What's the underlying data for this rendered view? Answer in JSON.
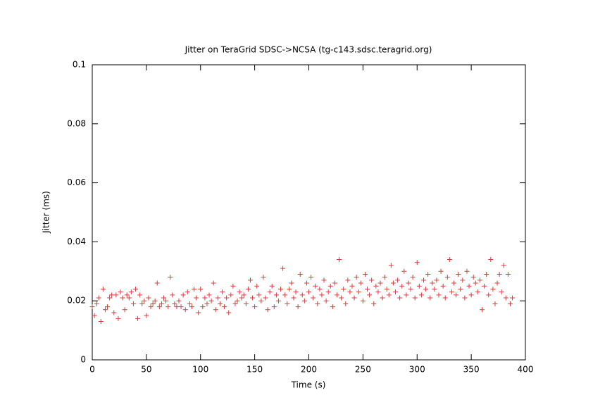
{
  "chart_data": {
    "type": "scatter",
    "title": "Jitter on TeraGrid SDSC->NCSA (tg-c143.sdsc.teragrid.org)",
    "xlabel": "Time (s)",
    "ylabel": "Jitter (ms)",
    "xlim": [
      0,
      400
    ],
    "xticks": [
      0,
      50,
      100,
      150,
      200,
      250,
      300,
      350,
      400
    ],
    "ylim": [
      0,
      0.1
    ],
    "yticks": [
      0,
      0.02,
      0.04,
      0.06,
      0.08,
      0.1
    ],
    "color": "#d83c3c",
    "x": [
      0,
      2,
      4,
      6,
      8,
      10,
      12,
      14,
      16,
      18,
      20,
      22,
      24,
      26,
      28,
      30,
      32,
      34,
      36,
      38,
      40,
      42,
      44,
      46,
      48,
      50,
      52,
      54,
      56,
      58,
      60,
      62,
      64,
      66,
      68,
      70,
      72,
      74,
      76,
      78,
      80,
      82,
      84,
      86,
      88,
      90,
      92,
      94,
      96,
      98,
      100,
      102,
      104,
      106,
      108,
      110,
      112,
      114,
      116,
      118,
      120,
      122,
      124,
      126,
      128,
      130,
      132,
      134,
      136,
      138,
      140,
      142,
      144,
      146,
      148,
      150,
      152,
      154,
      156,
      158,
      160,
      162,
      164,
      166,
      168,
      170,
      172,
      174,
      176,
      178,
      180,
      182,
      184,
      186,
      188,
      190,
      192,
      194,
      196,
      198,
      200,
      202,
      204,
      206,
      208,
      210,
      212,
      214,
      216,
      218,
      220,
      222,
      224,
      226,
      228,
      230,
      232,
      234,
      236,
      238,
      240,
      242,
      244,
      246,
      248,
      250,
      252,
      254,
      256,
      258,
      260,
      262,
      264,
      266,
      268,
      270,
      272,
      274,
      276,
      278,
      280,
      282,
      284,
      286,
      288,
      290,
      292,
      294,
      296,
      298,
      300,
      302,
      304,
      306,
      308,
      310,
      312,
      314,
      316,
      318,
      320,
      322,
      324,
      326,
      328,
      330,
      332,
      334,
      336,
      338,
      340,
      342,
      344,
      346,
      348,
      350,
      352,
      354,
      356,
      358,
      360,
      362,
      364,
      366,
      368,
      370,
      372,
      374,
      376,
      378,
      380,
      382,
      384,
      386,
      388
    ],
    "values": [
      0.018,
      0.015,
      0.019,
      0.021,
      0.013,
      0.024,
      0.017,
      0.018,
      0.021,
      0.022,
      0.016,
      0.022,
      0.014,
      0.023,
      0.021,
      0.017,
      0.022,
      0.021,
      0.023,
      0.019,
      0.024,
      0.014,
      0.022,
      0.019,
      0.02,
      0.015,
      0.021,
      0.018,
      0.019,
      0.02,
      0.026,
      0.018,
      0.019,
      0.021,
      0.02,
      0.018,
      0.028,
      0.022,
      0.019,
      0.018,
      0.02,
      0.018,
      0.022,
      0.017,
      0.023,
      0.019,
      0.018,
      0.024,
      0.021,
      0.016,
      0.024,
      0.018,
      0.021,
      0.019,
      0.022,
      0.02,
      0.026,
      0.017,
      0.021,
      0.019,
      0.023,
      0.018,
      0.021,
      0.016,
      0.022,
      0.025,
      0.019,
      0.02,
      0.023,
      0.021,
      0.022,
      0.019,
      0.024,
      0.027,
      0.021,
      0.018,
      0.025,
      0.022,
      0.02,
      0.028,
      0.021,
      0.017,
      0.023,
      0.025,
      0.018,
      0.022,
      0.02,
      0.024,
      0.031,
      0.022,
      0.019,
      0.024,
      0.026,
      0.021,
      0.023,
      0.018,
      0.029,
      0.022,
      0.02,
      0.026,
      0.023,
      0.028,
      0.021,
      0.025,
      0.019,
      0.024,
      0.022,
      0.027,
      0.02,
      0.023,
      0.025,
      0.018,
      0.026,
      0.022,
      0.034,
      0.021,
      0.024,
      0.019,
      0.027,
      0.023,
      0.025,
      0.021,
      0.028,
      0.023,
      0.026,
      0.02,
      0.029,
      0.024,
      0.022,
      0.027,
      0.019,
      0.025,
      0.023,
      0.026,
      0.021,
      0.028,
      0.024,
      0.022,
      0.032,
      0.026,
      0.023,
      0.027,
      0.021,
      0.025,
      0.03,
      0.022,
      0.026,
      0.024,
      0.028,
      0.021,
      0.033,
      0.025,
      0.022,
      0.027,
      0.024,
      0.029,
      0.021,
      0.026,
      0.024,
      0.027,
      0.022,
      0.03,
      0.025,
      0.021,
      0.028,
      0.034,
      0.023,
      0.026,
      0.022,
      0.029,
      0.024,
      0.027,
      0.021,
      0.03,
      0.025,
      0.022,
      0.028,
      0.026,
      0.023,
      0.027,
      0.017,
      0.025,
      0.029,
      0.022,
      0.034,
      0.024,
      0.019,
      0.026,
      0.029,
      0.023,
      0.032,
      0.021,
      0.029,
      0.019,
      0.021
    ]
  }
}
